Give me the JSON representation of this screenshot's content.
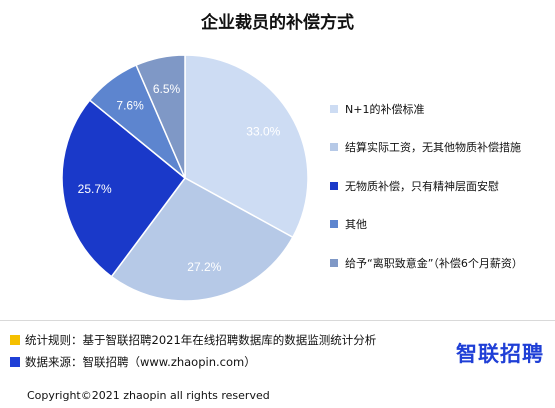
{
  "chart_data": {
    "type": "pie",
    "title": "企业裁员的补偿方式",
    "categories": [
      "N+1的补偿标准",
      "结算实际工资，无其他物质补偿措施",
      "无物质补偿，只有精神层面安慰",
      "其他",
      "给予“离职致意金”（补偿6个月薪资）"
    ],
    "values": [
      33.0,
      27.2,
      25.7,
      7.6,
      6.5
    ],
    "data_labels": [
      "33.0%",
      "27.2%",
      "25.7%",
      "7.6%",
      "6.5%"
    ],
    "colors": [
      "#cddcf3",
      "#b6c9e7",
      "#1a39c9",
      "#5d85cf",
      "#7f98c6"
    ],
    "label_colors": [
      "#ffffff",
      "#ffffff",
      "#ffffff",
      "#ffffff",
      "#ffffff"
    ],
    "legend": "right"
  },
  "footer": {
    "rule": "统计规则：基于智联招聘2021年在线招聘数据库的数据监测统计分析",
    "source": "数据来源：智联招聘（www.zhaopin.com）",
    "rule_color": "#f5c000",
    "source_color": "#1f3fd6",
    "copyright": "Copyright©2021 zhaopin all rights reserved",
    "logo": "智联招聘"
  }
}
